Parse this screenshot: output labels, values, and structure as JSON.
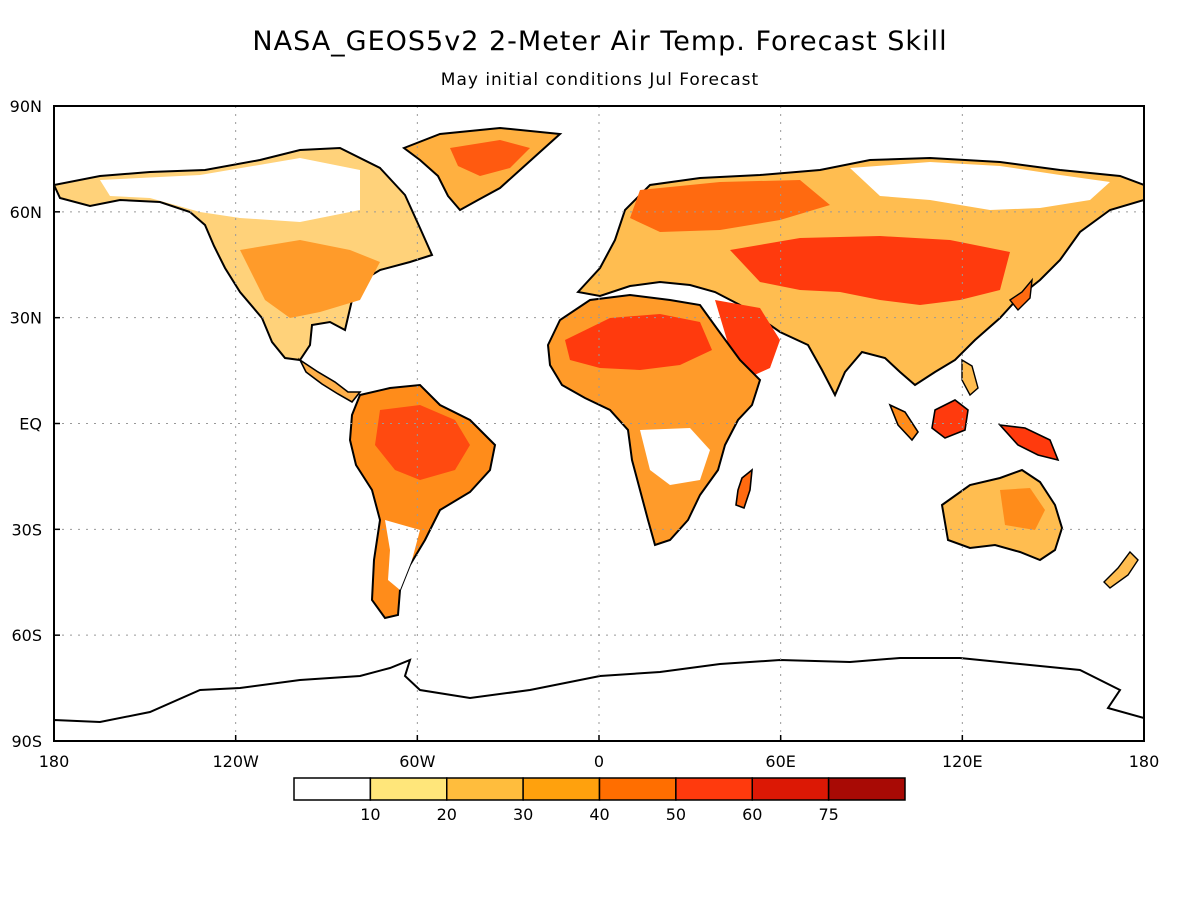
{
  "title": "NASA_GEOS5v2 2-Meter Air Temp. Forecast Skill",
  "subtitle": "May initial conditions   Jul Forecast",
  "map": {
    "lat_labels": [
      "90N",
      "60N",
      "30N",
      "EQ",
      "30S",
      "60S",
      "90S"
    ],
    "lat_values": [
      90,
      60,
      30,
      0,
      -30,
      -60,
      -90
    ],
    "lon_labels": [
      "180",
      "120W",
      "60W",
      "0",
      "60E",
      "120E",
      "180"
    ],
    "lon_values": [
      -180,
      -120,
      -60,
      0,
      60,
      120,
      180
    ],
    "lon_range": [
      -180,
      180
    ],
    "lat_range": [
      -90,
      90
    ],
    "grid": "dotted"
  },
  "colorbar": {
    "labels": [
      "10",
      "20",
      "30",
      "40",
      "50",
      "60",
      "75"
    ],
    "colors": [
      "#ffffff",
      "#ffe67a",
      "#ffbd3d",
      "#ffa10d",
      "#ff6e00",
      "#ff3a0d",
      "#dc1805",
      "#a80a05"
    ]
  }
}
